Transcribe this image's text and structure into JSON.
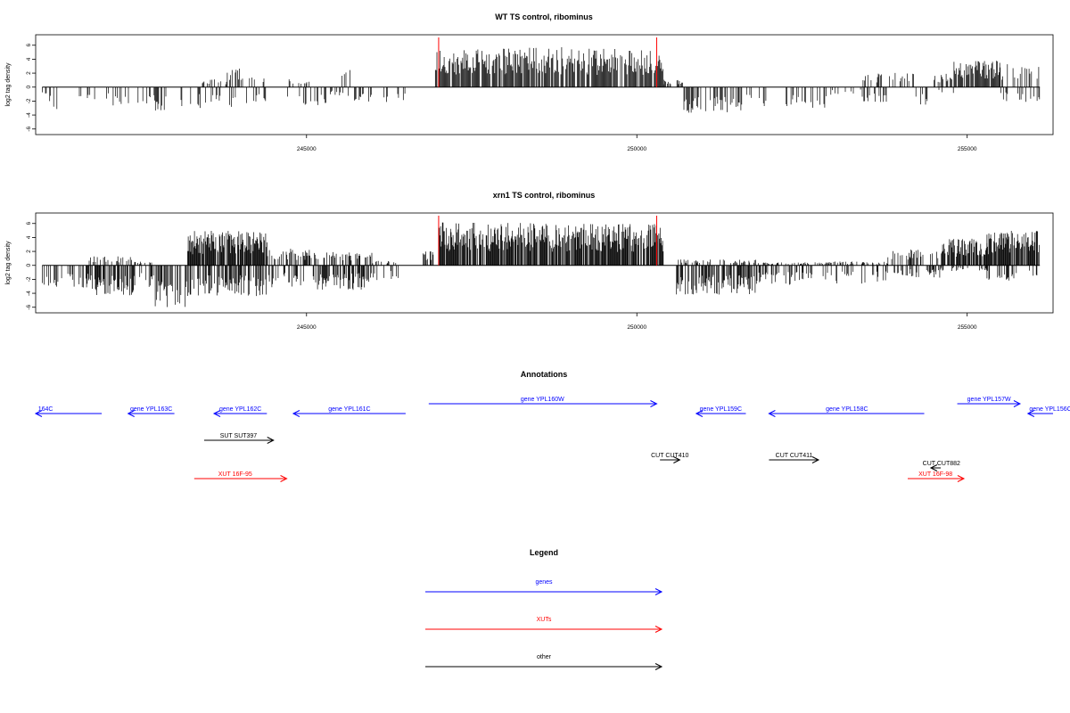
{
  "chart_data": [
    {
      "type": "bar",
      "title": "WT TS control, ribominus",
      "ylabel": "log2 tag density",
      "xlabel": "",
      "xlim": [
        240900,
        256300
      ],
      "ylim": [
        -6.8,
        7.5
      ],
      "xticks": [
        245000,
        250000,
        255000
      ],
      "yticks": [
        -6,
        -4,
        -2,
        0,
        2,
        4,
        6
      ],
      "series_color": "#000000",
      "marker_color": "#ff0000",
      "markers_x": [
        247000,
        250300
      ],
      "profile": [
        {
          "start": 241000,
          "end": 241100,
          "pos": 0.0,
          "neg": -1.0
        },
        {
          "start": 241100,
          "end": 241300,
          "pos": 0.0,
          "neg": -3.0
        },
        {
          "start": 241500,
          "end": 242000,
          "pos": 0.0,
          "neg": -2.0
        },
        {
          "start": 242000,
          "end": 242700,
          "pos": 0.0,
          "neg": -2.6
        },
        {
          "start": 242700,
          "end": 242900,
          "pos": 0.0,
          "neg": -3.4
        },
        {
          "start": 243100,
          "end": 243400,
          "pos": 0.0,
          "neg": -2.8
        },
        {
          "start": 243400,
          "end": 243800,
          "pos": 1.0,
          "neg": -2.2
        },
        {
          "start": 243800,
          "end": 244100,
          "pos": 2.5,
          "neg": -2.6
        },
        {
          "start": 244100,
          "end": 244400,
          "pos": 1.5,
          "neg": -2.0
        },
        {
          "start": 244700,
          "end": 245100,
          "pos": 1.2,
          "neg": -2.4
        },
        {
          "start": 245100,
          "end": 245300,
          "pos": 0.0,
          "neg": -2.8
        },
        {
          "start": 245300,
          "end": 245500,
          "pos": 0.0,
          "neg": -1.2
        },
        {
          "start": 245500,
          "end": 245700,
          "pos": 2.3,
          "neg": -1.5
        },
        {
          "start": 245700,
          "end": 246500,
          "pos": 0.0,
          "neg": -2.0
        },
        {
          "start": 246950,
          "end": 248000,
          "pos": 5.0,
          "neg": 0.0
        },
        {
          "start": 248000,
          "end": 249000,
          "pos": 5.2,
          "neg": 0.0
        },
        {
          "start": 249000,
          "end": 250400,
          "pos": 5.0,
          "neg": 0.0
        },
        {
          "start": 250400,
          "end": 250700,
          "pos": 1.0,
          "neg": 0.0
        },
        {
          "start": 250700,
          "end": 251600,
          "pos": 0.0,
          "neg": -3.4
        },
        {
          "start": 251600,
          "end": 252000,
          "pos": 0.0,
          "neg": -2.5
        },
        {
          "start": 252200,
          "end": 252900,
          "pos": 0.0,
          "neg": -2.8
        },
        {
          "start": 252900,
          "end": 253400,
          "pos": 0.0,
          "neg": -1.0
        },
        {
          "start": 253400,
          "end": 253800,
          "pos": 1.8,
          "neg": -2.0
        },
        {
          "start": 253800,
          "end": 254200,
          "pos": 2.0,
          "neg": 0.0
        },
        {
          "start": 254200,
          "end": 254400,
          "pos": 0.0,
          "neg": -2.5
        },
        {
          "start": 254500,
          "end": 254800,
          "pos": 1.8,
          "neg": -1.0
        },
        {
          "start": 254800,
          "end": 255500,
          "pos": 3.5,
          "neg": 0.0
        },
        {
          "start": 255500,
          "end": 256100,
          "pos": 3.0,
          "neg": -2.0
        }
      ]
    },
    {
      "type": "bar",
      "title": "xrn1 TS control, ribominus",
      "ylabel": "log2 tag density",
      "xlabel": "",
      "xlim": [
        240900,
        256300
      ],
      "ylim": [
        -6.8,
        7.5
      ],
      "xticks": [
        245000,
        250000,
        255000
      ],
      "yticks": [
        -6,
        -4,
        -2,
        0,
        2,
        4,
        6
      ],
      "series_color": "#000000",
      "marker_color": "#ff0000",
      "markers_x": [
        247000,
        250300
      ],
      "profile": [
        {
          "start": 241000,
          "end": 241700,
          "pos": 0.0,
          "neg": -3.0
        },
        {
          "start": 241700,
          "end": 242400,
          "pos": 1.2,
          "neg": -4.0
        },
        {
          "start": 242400,
          "end": 242700,
          "pos": 0.5,
          "neg": -3.0
        },
        {
          "start": 242700,
          "end": 243200,
          "pos": 0.0,
          "neg": -5.5
        },
        {
          "start": 243200,
          "end": 244400,
          "pos": 4.5,
          "neg": -4.0
        },
        {
          "start": 244400,
          "end": 245100,
          "pos": 2.2,
          "neg": -3.0
        },
        {
          "start": 245100,
          "end": 246000,
          "pos": 1.8,
          "neg": -3.2
        },
        {
          "start": 246000,
          "end": 246400,
          "pos": 0.6,
          "neg": -2.0
        },
        {
          "start": 246700,
          "end": 247000,
          "pos": 2.0,
          "neg": 0.0
        },
        {
          "start": 247000,
          "end": 248500,
          "pos": 5.6,
          "neg": 0.0
        },
        {
          "start": 248500,
          "end": 250400,
          "pos": 5.4,
          "neg": 0.0
        },
        {
          "start": 250600,
          "end": 251800,
          "pos": 0.8,
          "neg": -3.8
        },
        {
          "start": 251800,
          "end": 252800,
          "pos": 0.4,
          "neg": -2.6
        },
        {
          "start": 252800,
          "end": 253800,
          "pos": 0.5,
          "neg": -2.4
        },
        {
          "start": 253800,
          "end": 254600,
          "pos": 2.2,
          "neg": -1.6
        },
        {
          "start": 254600,
          "end": 255300,
          "pos": 3.5,
          "neg": -0.8
        },
        {
          "start": 255300,
          "end": 256100,
          "pos": 4.5,
          "neg": -2.0
        }
      ]
    },
    {
      "type": "annotation_track",
      "title": "Annotations",
      "xlim": [
        240900,
        256300
      ],
      "features": [
        {
          "label": "164C",
          "start": 240900,
          "end": 241900,
          "strand": "-",
          "color": "#0000ff",
          "row": 0,
          "label_x": 241050,
          "label_pos": "above"
        },
        {
          "label": "gene YPL163C",
          "start": 242300,
          "end": 243000,
          "strand": "-",
          "color": "#0000ff",
          "row": 0,
          "label_x": 242650,
          "label_pos": "above"
        },
        {
          "label": "gene YPL162C",
          "start": 243600,
          "end": 244400,
          "strand": "-",
          "color": "#0000ff",
          "row": 0,
          "label_x": 244000,
          "label_pos": "above"
        },
        {
          "label": "gene YPL161C",
          "start": 244800,
          "end": 246500,
          "strand": "-",
          "color": "#0000ff",
          "row": 0,
          "label_x": 245650,
          "label_pos": "above"
        },
        {
          "label": "gene YPL160W",
          "start": 246850,
          "end": 250300,
          "strand": "+",
          "color": "#0000ff",
          "row": -1,
          "label_x": 248570,
          "label_pos": "above"
        },
        {
          "label": "gene YPL159C",
          "start": 250900,
          "end": 251650,
          "strand": "-",
          "color": "#0000ff",
          "row": 0,
          "label_x": 251270,
          "label_pos": "above"
        },
        {
          "label": "gene YPL158C",
          "start": 252000,
          "end": 254350,
          "strand": "-",
          "color": "#0000ff",
          "row": 0,
          "label_x": 253180,
          "label_pos": "above"
        },
        {
          "label": "gene YPL157W",
          "start": 254850,
          "end": 255800,
          "strand": "+",
          "color": "#0000ff",
          "row": -1,
          "label_x": 255330,
          "label_pos": "above"
        },
        {
          "label": "gene YPL156C",
          "start": 255920,
          "end": 256300,
          "strand": "-",
          "color": "#0000ff",
          "row": 0,
          "label_x": 256300,
          "label_pos": "above"
        },
        {
          "label": "SUT SUT397",
          "start": 243450,
          "end": 244500,
          "strand": "+",
          "color": "#000000",
          "row": 1,
          "label_x": 243970,
          "label_pos": "above"
        },
        {
          "label": "CUT CUT410",
          "start": 250350,
          "end": 250650,
          "strand": "+",
          "color": "#000000",
          "row": 2,
          "label_x": 250500,
          "label_pos": "above"
        },
        {
          "label": "CUT CUT411",
          "start": 252000,
          "end": 252750,
          "strand": "+",
          "color": "#000000",
          "row": 2,
          "label_x": 252380,
          "label_pos": "above"
        },
        {
          "label": "CUT CUT882",
          "start": 254450,
          "end": 254600,
          "strand": "-",
          "color": "#000000",
          "row": 2.4,
          "label_x": 254610,
          "label_pos": "above"
        },
        {
          "label": "XUT 16F-95",
          "start": 243300,
          "end": 244700,
          "strand": "+",
          "color": "#ff0000",
          "row": 3,
          "label_x": 243920,
          "label_pos": "above"
        },
        {
          "label": "XUT 16F-98",
          "start": 254100,
          "end": 254950,
          "strand": "+",
          "color": "#ff0000",
          "row": 3,
          "label_x": 254520,
          "label_pos": "above"
        }
      ]
    },
    {
      "type": "legend",
      "title": "Legend",
      "entries": [
        {
          "label": "genes",
          "color": "#0000ff"
        },
        {
          "label": "XUTs",
          "color": "#ff0000"
        },
        {
          "label": "other",
          "color": "#000000"
        }
      ]
    }
  ]
}
